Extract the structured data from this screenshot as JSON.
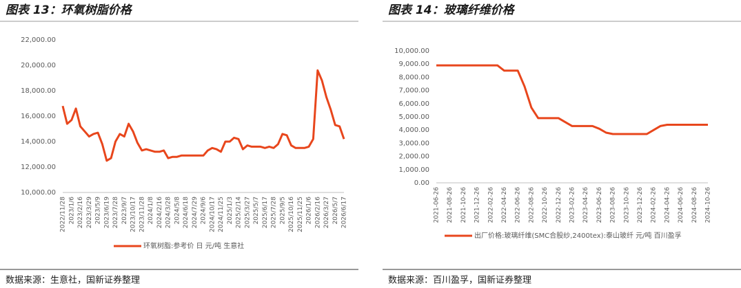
{
  "chart_data": [
    {
      "type": "line",
      "title": "图表 13：环氧树脂价格",
      "source": "数据来源：生意社，国新证券整理",
      "categories": [
        "2022/11/28",
        null,
        "2023/1/6",
        null,
        "2023/2/16",
        null,
        "2023/3/29",
        null,
        "2023/5/9",
        null,
        "2023/6/19",
        null,
        "2023/7/28",
        null,
        "2023/9/7",
        null,
        "2023/10/17",
        null,
        "2023/11/28",
        null,
        "2024/1/8",
        null,
        "2024/2/16",
        null,
        "2024/3/28",
        null,
        "2024/5/8",
        null,
        "2024/6/18",
        null,
        "2024/7/29",
        null,
        "2024/9/6",
        null,
        "2024/10/17",
        null,
        "2024/11/25",
        null,
        "2025/1/3",
        null,
        "2025/2/14",
        null,
        "2025/3/27",
        null,
        "2025/5/7",
        null,
        "2025/6/17",
        null,
        "2025/7/28",
        null,
        "2025/9/5",
        null,
        "2025/10/16",
        null,
        "2025/11/25",
        null,
        "2026/1/6",
        null,
        "2026/2/16",
        null,
        "2026/3/27",
        null,
        "2026/5/7",
        null,
        "2026/6/17"
      ],
      "series": [
        {
          "name": "环氧树脂:参考价 日 元/吨 生意社",
          "color": "#e8461c",
          "values": [
            16800,
            15400,
            15700,
            16600,
            15200,
            14800,
            14400,
            14600,
            14700,
            13800,
            12500,
            12700,
            14000,
            14600,
            14400,
            15400,
            14800,
            13900,
            13300,
            13400,
            13300,
            13200,
            13200,
            13300,
            12700,
            12800,
            12800,
            12900,
            12900,
            12900,
            12900,
            12900,
            12900,
            13300,
            13500,
            13400,
            13200,
            14000,
            14000,
            14300,
            14200,
            13400,
            13700,
            13600,
            13600,
            13600,
            13500,
            13600,
            13500,
            13800,
            14600,
            14500,
            13700,
            13500,
            13500,
            13500,
            13600,
            14200,
            19600,
            18800,
            17500,
            16500,
            15300,
            15200,
            14200
          ]
        }
      ],
      "ylim": [
        10000,
        22000
      ],
      "yticks": [
        {
          "value": 10000,
          "label": "10,000.00"
        },
        {
          "value": 12000,
          "label": "12,000.00"
        },
        {
          "value": 14000,
          "label": "14,000.00"
        },
        {
          "value": 16000,
          "label": "16,000.00"
        },
        {
          "value": 18000,
          "label": "18,000.00"
        },
        {
          "value": 20000,
          "label": "20,000.00"
        },
        {
          "value": 22000,
          "label": "22,000.00"
        }
      ]
    },
    {
      "type": "line",
      "title": "图表 14：玻璃纤维价格",
      "source": "数据来源：百川盈孚，国新证券整理",
      "categories": [
        "2021-06-26",
        null,
        "2021-08-26",
        null,
        "2021-10-26",
        null,
        "2021-12-26",
        null,
        "2022-02-26",
        null,
        "2022-04-26",
        null,
        "2022-06-26",
        null,
        "2022-08-26",
        null,
        "2022-10-26",
        null,
        "2022-12-26",
        null,
        "2023-02-26",
        null,
        "2023-04-26",
        null,
        "2023-06-26",
        null,
        "2023-08-26",
        null,
        "2023-10-26",
        null,
        "2023-12-26",
        null,
        "2024-02-26",
        null,
        "2024-04-26",
        null,
        "2024-06-26",
        null,
        "2024-08-26",
        null,
        "2024-10-26"
      ],
      "series": [
        {
          "name": "出厂价格:玻璃纤维(SMC合股纱,2400tex):泰山玻纤 元/吨 百川盈孚",
          "color": "#e8461c",
          "values": [
            8900,
            8900,
            8900,
            8900,
            8900,
            8900,
            8900,
            8900,
            8900,
            8900,
            8500,
            8500,
            8500,
            7300,
            5700,
            4900,
            4900,
            4900,
            4900,
            4600,
            4300,
            4300,
            4300,
            4300,
            4100,
            3800,
            3700,
            3700,
            3700,
            3700,
            3700,
            3700,
            4000,
            4300,
            4400,
            4400,
            4400,
            4400,
            4400,
            4400,
            4400
          ]
        }
      ],
      "ylim": [
        0,
        10000
      ],
      "yticks": [
        {
          "value": 0,
          "label": "0.00"
        },
        {
          "value": 1000,
          "label": "1,000.00"
        },
        {
          "value": 2000,
          "label": "2,000.00"
        },
        {
          "value": 3000,
          "label": "3,000.00"
        },
        {
          "value": 4000,
          "label": "4,000.00"
        },
        {
          "value": 5000,
          "label": "5,000.00"
        },
        {
          "value": 6000,
          "label": "6,000.00"
        },
        {
          "value": 7000,
          "label": "7,000.00"
        },
        {
          "value": 8000,
          "label": "8,000.00"
        },
        {
          "value": 9000,
          "label": "9,000.00"
        },
        {
          "value": 10000,
          "label": "10,000.00"
        }
      ]
    }
  ]
}
